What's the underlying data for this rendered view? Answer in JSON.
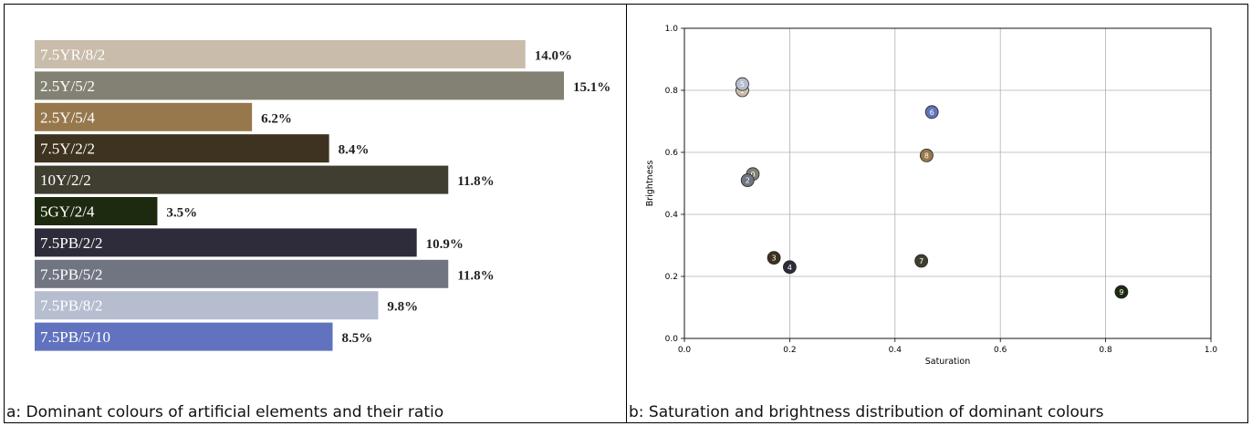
{
  "panel_a": {
    "caption": "a: Dominant colours of artificial elements and their ratio"
  },
  "panel_b": {
    "caption": "b: Saturation and brightness distribution of dominant colours"
  },
  "chart_data": [
    {
      "type": "bar",
      "orientation": "horizontal",
      "categories": [
        "7.5YR/8/2",
        "2.5Y/5/2",
        "2.5Y/5/4",
        "7.5Y/2/2",
        "10Y/2/2",
        "5GY/2/4",
        "7.5PB/2/2",
        "7.5PB/5/2",
        "7.5PB/8/2",
        "7.5PB/5/10"
      ],
      "values": [
        14.0,
        15.1,
        6.2,
        8.4,
        11.8,
        3.5,
        10.9,
        11.8,
        9.8,
        8.5
      ],
      "value_labels": [
        "14.0%",
        "15.1%",
        "6.2%",
        "8.4%",
        "11.8%",
        "3.5%",
        "10.9%",
        "11.8%",
        "9.8%",
        "8.5%"
      ],
      "colors": [
        "#c9bcaa",
        "#838173",
        "#97784c",
        "#3e3320",
        "#403e30",
        "#1e2a10",
        "#2e2c3a",
        "#717582",
        "#b5bdcf",
        "#6173be"
      ],
      "xlim": [
        0,
        15.1
      ]
    },
    {
      "type": "scatter",
      "xlabel": "Saturation",
      "ylabel": "Brightness",
      "xlim": [
        0.0,
        1.0
      ],
      "ylim": [
        0.0,
        1.0
      ],
      "xticks": [
        "0.0",
        "0.2",
        "0.4",
        "0.6",
        "0.8",
        "1.0"
      ],
      "yticks": [
        "0.0",
        "0.2",
        "0.4",
        "0.6",
        "0.8",
        "1.0"
      ],
      "grid": true,
      "points": [
        {
          "label": "0",
          "x": 0.13,
          "y": 0.53,
          "color": "#838173"
        },
        {
          "label": "1",
          "x": 0.11,
          "y": 0.8,
          "color": "#c9bcaa"
        },
        {
          "label": "2",
          "x": 0.12,
          "y": 0.51,
          "color": "#717582"
        },
        {
          "label": "3",
          "x": 0.17,
          "y": 0.26,
          "color": "#3e3320"
        },
        {
          "label": "4",
          "x": 0.2,
          "y": 0.23,
          "color": "#2e2c3a"
        },
        {
          "label": "5",
          "x": 0.11,
          "y": 0.82,
          "color": "#b5bdcf"
        },
        {
          "label": "6",
          "x": 0.47,
          "y": 0.73,
          "color": "#6173be"
        },
        {
          "label": "7",
          "x": 0.45,
          "y": 0.25,
          "color": "#403e30"
        },
        {
          "label": "8",
          "x": 0.46,
          "y": 0.59,
          "color": "#97784c"
        },
        {
          "label": "9",
          "x": 0.83,
          "y": 0.15,
          "color": "#1e2a10"
        }
      ]
    }
  ]
}
